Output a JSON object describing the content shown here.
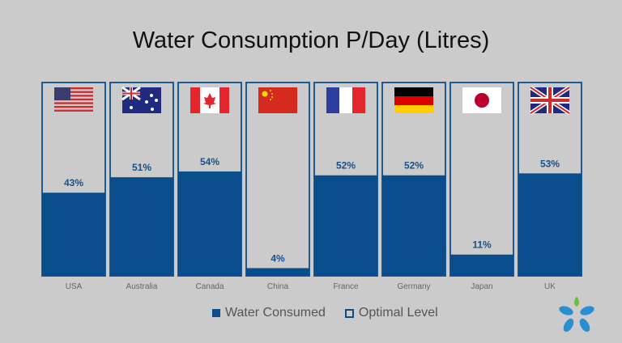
{
  "chart_data": {
    "type": "bar",
    "title": "Water Consumption P/Day (Litres)",
    "categories": [
      "USA",
      "Australia",
      "Canada",
      "China",
      "France",
      "Germany",
      "Japan",
      "UK"
    ],
    "flags": [
      "us-flag",
      "au-flag",
      "ca-flag",
      "cn-flag",
      "fr-flag",
      "de-flag",
      "jp-flag",
      "uk-flag"
    ],
    "series": [
      {
        "name": "Water Consumed",
        "values": [
          43,
          51,
          54,
          4,
          52,
          52,
          11,
          53
        ]
      }
    ],
    "data_labels": [
      "43%",
      "51%",
      "54%",
      "4%",
      "52%",
      "52%",
      "11%",
      "53%"
    ],
    "ylim": [
      0,
      100
    ],
    "legend": {
      "position": "bottom",
      "items": [
        "Water Consumed",
        "Optimal Level"
      ]
    },
    "colors": {
      "consumed": "#0a4d8c",
      "border": "#1f5a91",
      "label": "#1a4f8a",
      "background": "#cbcbcb"
    }
  }
}
